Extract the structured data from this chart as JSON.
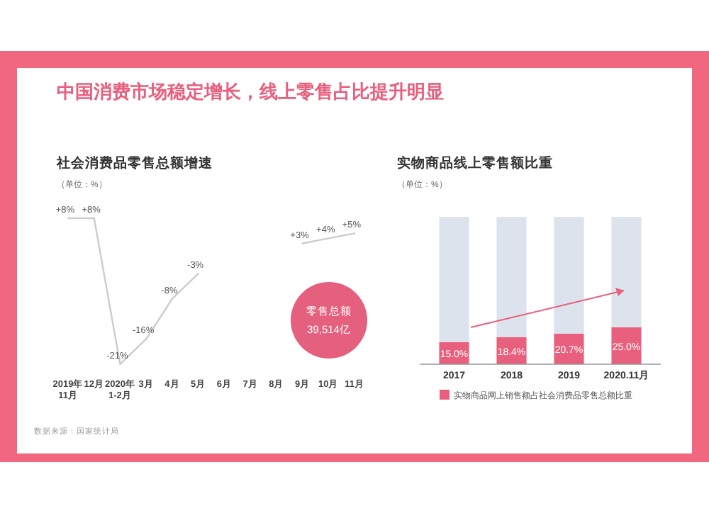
{
  "chart_data": [
    {
      "type": "line",
      "title": "社会消费品零售总额增速",
      "subtitle": "（单位：%）",
      "annotations": [
        "中国消费市场稳定增长，线上零售占比提升明显",
        "零售总额\n39,514亿",
        "数据来源：国家统计局"
      ],
      "categories": [
        "2019年\n11月",
        "12月",
        "2020年\n1-2月",
        "3月",
        "4月",
        "5月",
        "6月",
        "7月",
        "8月",
        "9月",
        "10月",
        "11月"
      ],
      "series": [
        {
          "color": "#cccccc",
          "values": [
            8,
            8,
            -21,
            -16,
            -8,
            -3,
            null,
            null,
            null,
            3,
            4,
            5
          ],
          "value_labels": [
            "+8%",
            "+8%",
            "-21%",
            "-16%",
            "-8%",
            "-3%",
            null,
            null,
            null,
            "+3%",
            "+4%",
            "+5%"
          ]
        }
      ],
      "marker": "none",
      "tick_labels": "x"
    },
    {
      "type": "bar",
      "title": "实物商品线上零售额比重",
      "subtitle": "（单位：%）",
      "stacked": true,
      "categories": [
        "2017",
        "2018",
        "2019",
        "2020.11月"
      ],
      "series": [
        {
          "name": "实物商品网上销售额占社会消费品零售总额比重",
          "color": "#e8607e",
          "values": [
            15.0,
            18.4,
            20.7,
            25.0
          ],
          "value_labels": [
            "15.0%",
            "18.4%",
            "20.7%",
            "25.0%"
          ]
        },
        {
          "color": "#dde3ec",
          "values": [
            85.0,
            81.6,
            79.3,
            75.0
          ]
        }
      ],
      "legend": "bottom",
      "tick_labels": "x"
    }
  ]
}
